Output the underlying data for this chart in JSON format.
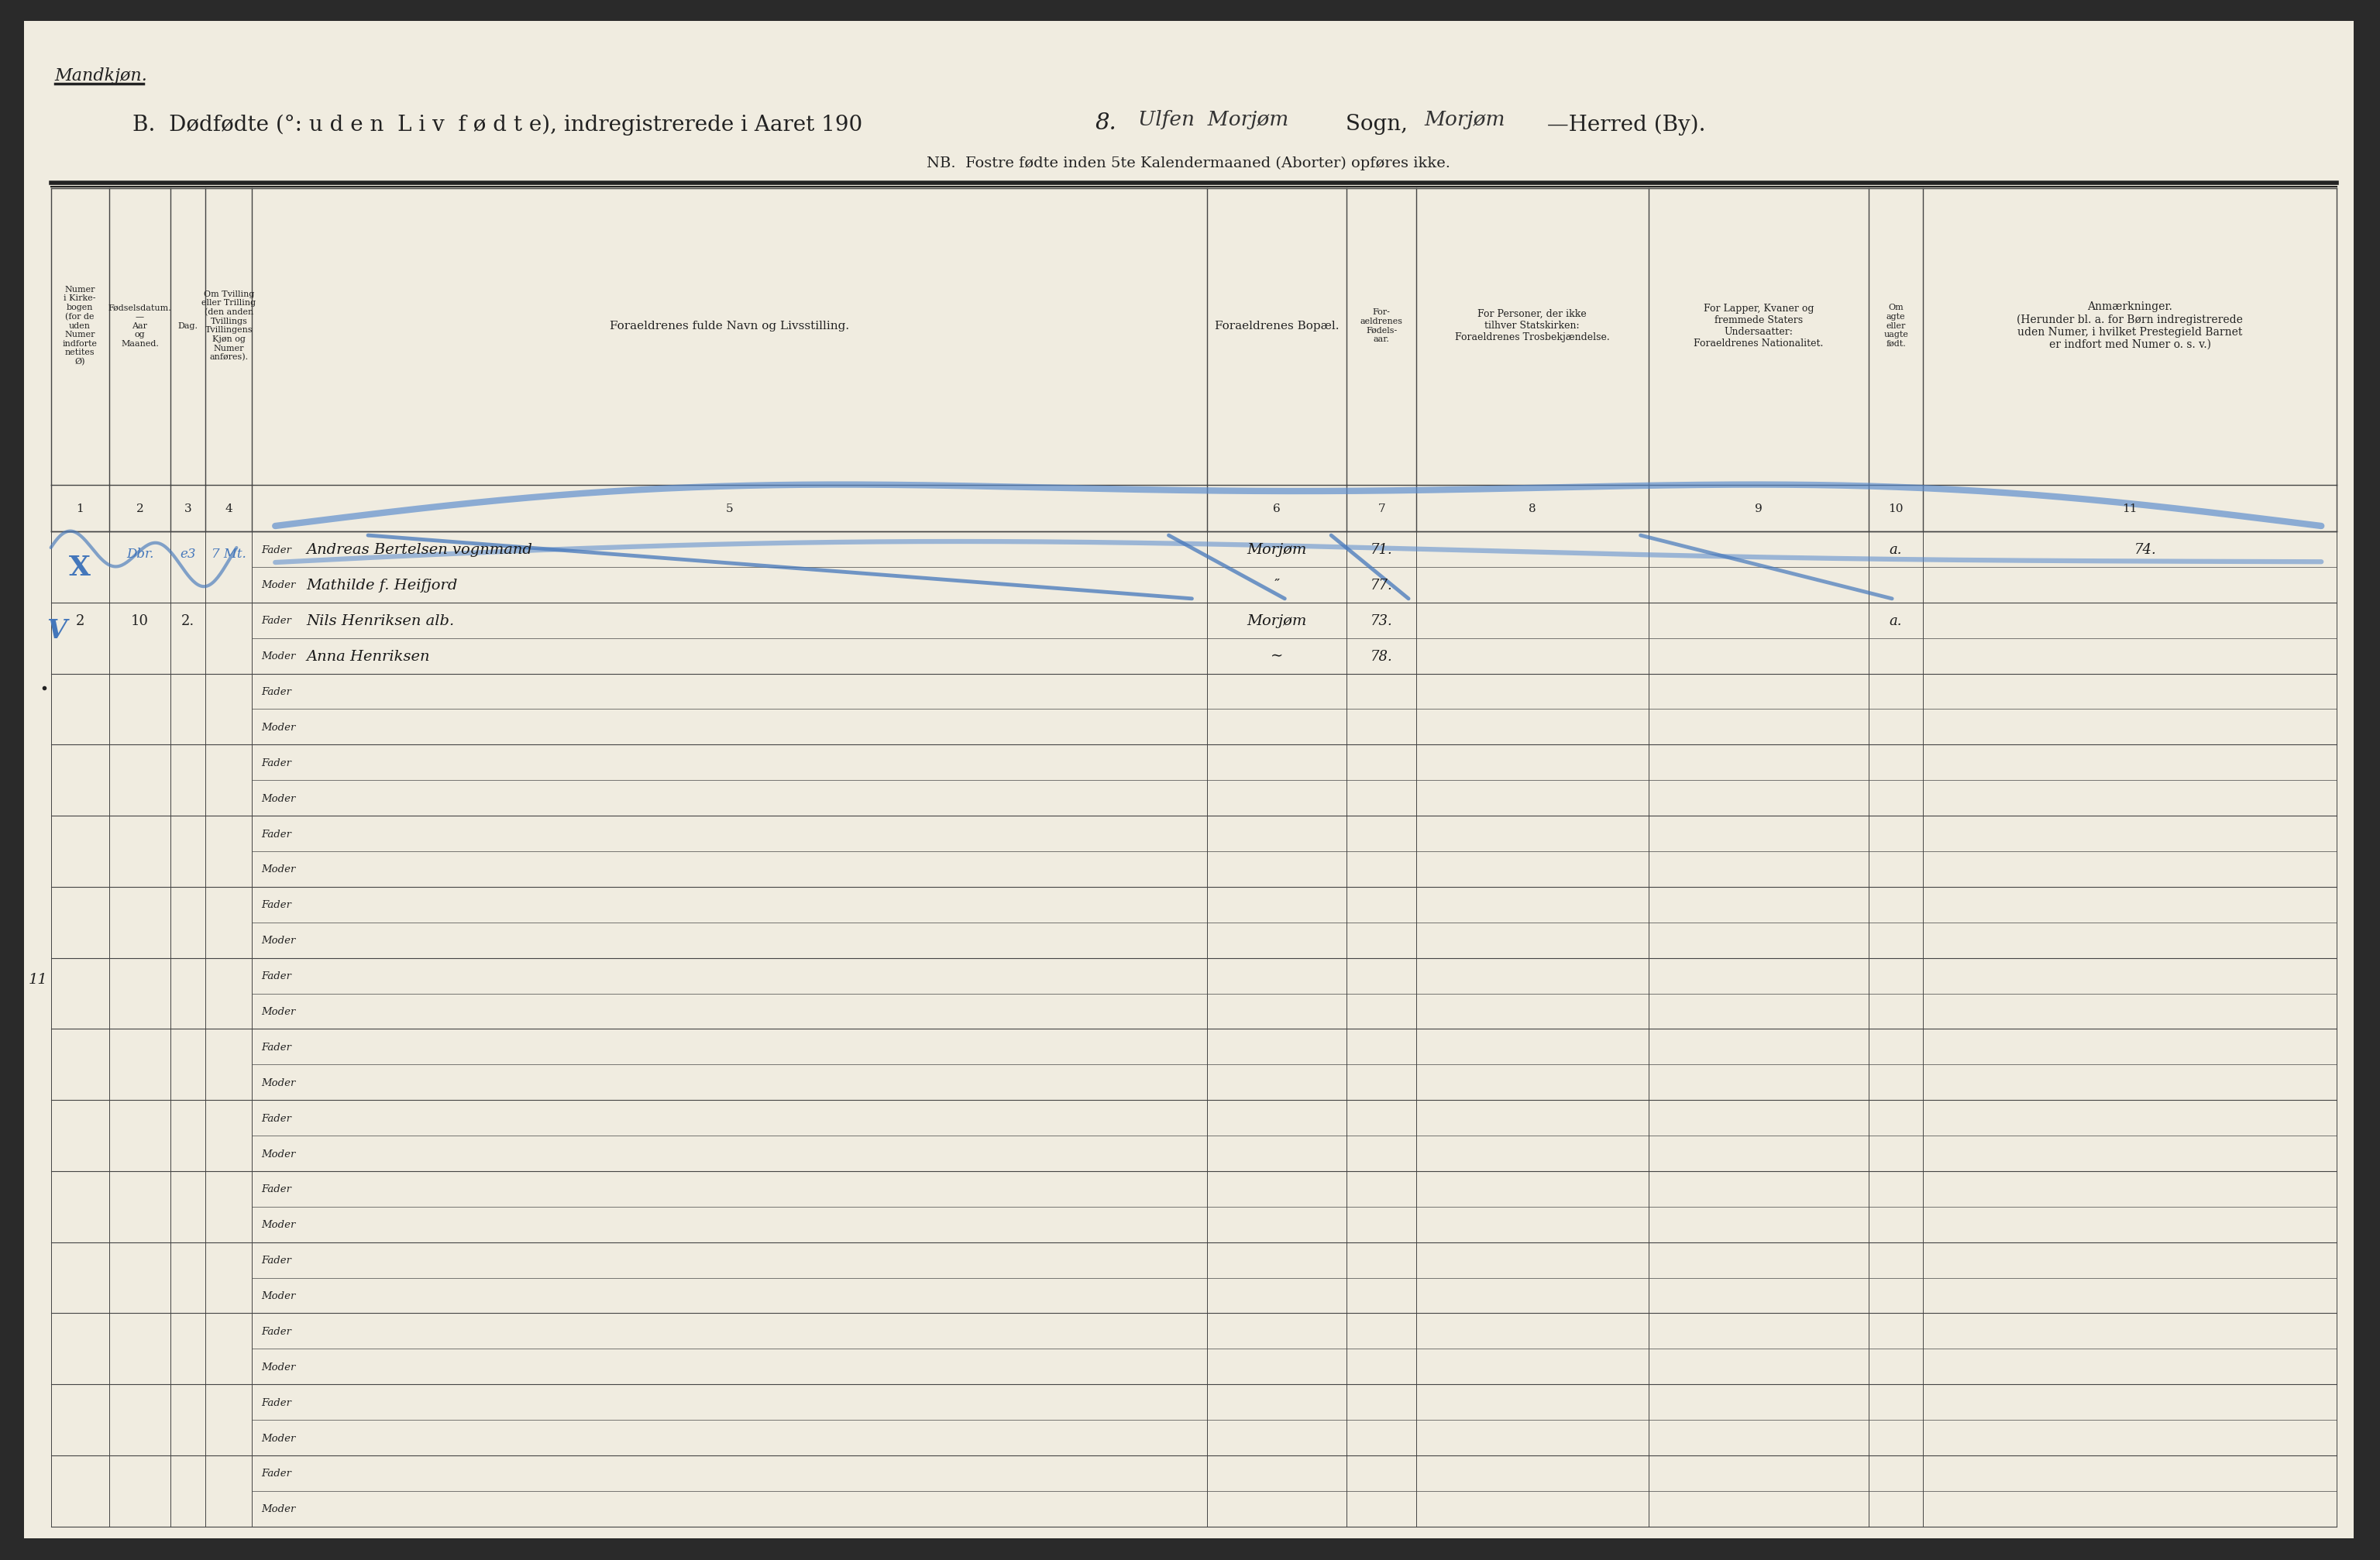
{
  "paper_color": "#f0ece0",
  "page_bg": "#2a2a2a",
  "line_color": "#444444",
  "thick_line_color": "#222222",
  "corner_label": "Mandkjøn.",
  "title_printed": "B.  Dødfødte (°: u d e n  L i v  f ø d t e), indregistrerede i Aaret 190",
  "title_year": "8.",
  "title_handwritten1": "Ulfen  Morjøm",
  "title_sogn": " Sogn,",
  "title_handwritten2": "Morjøm",
  "title_herred": " —Herred (By).",
  "subtitle": "NB.  Fostre fødte inden 5te Kalendermaaned (Aborter) opføres ikke.",
  "col_headers": [
    "Numer\ni Kirke-\nbogen\n(for de\nuden\nNumer\nindforte\nnetites\nØ)",
    "Fødselsdatum.\n—\nAar\nog\nMaaned.",
    "Dag.",
    "Om Tvilling\neller Trilling\n(den anden\nTvillings\nTvillingens\nKjøn og\nNumer\nanføres).",
    "Foraeldrenes fulde Navn og Livsstilling.",
    "Foraeldrenes Bopæl.",
    "For-\naeldrenes\nFødels-\naar.",
    "For Personer, der ikke\ntilhver Statskirken:\nForaeldrenes Trosbekjændelse.",
    "For Lapper, Kvaner og\nfremmede Staters\nUndersaatter:\nForaeldrenes Nationalitet.",
    "Om\nagte\neller\nuagte\nfødt.",
    "Anmærkninger.\n(Herunder bl. a. for Børn indregistrerede\nuden Numer, i hvilket Prestegield Barnet\ner indfort med Numer o. s. v.)"
  ],
  "col_numbers": [
    "1",
    "2",
    "3",
    "4",
    "5",
    "6",
    "7",
    "8",
    "9",
    "10",
    "11"
  ],
  "num_data_rows": 14,
  "blue_ink": "#4477bb",
  "blue_ink2": "#5588cc",
  "dark_ink": "#2a2a2a",
  "handwritten_row1": {
    "x_mark": "X",
    "col2": "Dbr.",
    "col3": "e3",
    "col4": "7 Mt.",
    "fader_name": "Andreas Bertelsen vognmand",
    "moder_name": "Mathilde f. Heifjord",
    "bopel_fader": "Morjøm",
    "bopel_moder": "″",
    "fodselsaar_fader": "71.",
    "fodselsaar_moder": "77.",
    "col10": "a.",
    "col11": "74."
  },
  "handwritten_row2": {
    "checkmark": "V",
    "col1": "2",
    "col2": "10",
    "col3": "2.",
    "fader_name": "Nils Henriksen alb.",
    "moder_name": "Anna Henriksen",
    "bopel_fader": "Morjøm",
    "bopel_moder": "∼",
    "fodselsaar_fader": "73.",
    "fodselsaar_moder": "78.",
    "col10": "a."
  },
  "left_margin_note": "11",
  "left_margin_dot": true
}
